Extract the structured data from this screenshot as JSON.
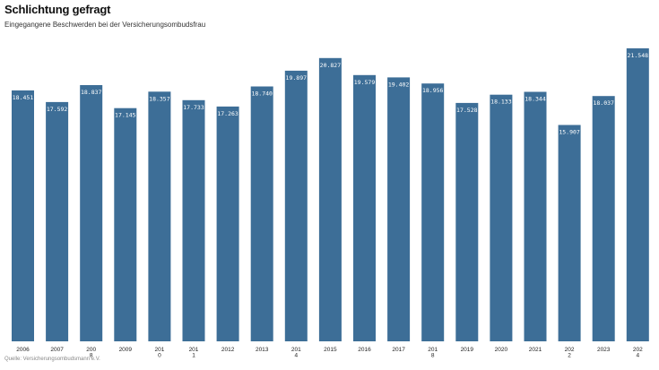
{
  "chart_data": {
    "type": "bar",
    "title": "Schlichtung gefragt",
    "subtitle": "Eingegangene Beschwerden bei der Versicherungsombudsfrau",
    "source": "Quelle: Versicherungsombudsmann e.V.",
    "xlabel": "",
    "ylabel": "",
    "ylim": [
      0,
      22000
    ],
    "grid": false,
    "bar_color": "#3d6e97",
    "label_color": "#ffffff",
    "categories": [
      "2006",
      "2007",
      "2008",
      "2009",
      "2010",
      "2011",
      "2012",
      "2013",
      "2014",
      "2015",
      "2016",
      "2017",
      "2018",
      "2019",
      "2020",
      "2021",
      "2022",
      "2023",
      "2024"
    ],
    "tick_labels": [
      [
        "2006"
      ],
      [
        "2007"
      ],
      [
        "200",
        "8"
      ],
      [
        "2009"
      ],
      [
        "201",
        "0"
      ],
      [
        "201",
        "1"
      ],
      [
        "2012"
      ],
      [
        "2013"
      ],
      [
        "201",
        "4"
      ],
      [
        "2015"
      ],
      [
        "2016"
      ],
      [
        "2017"
      ],
      [
        "201",
        "8"
      ],
      [
        "2019"
      ],
      [
        "2020"
      ],
      [
        "2021"
      ],
      [
        "202",
        "2"
      ],
      [
        "2023"
      ],
      [
        "202",
        "4"
      ]
    ],
    "values": [
      18451,
      17592,
      18837,
      17145,
      18357,
      17733,
      17263,
      18740,
      19897,
      20827,
      19579,
      19402,
      18956,
      17528,
      18133,
      18344,
      15907,
      18037,
      21548
    ],
    "value_labels": [
      "18.451",
      "17.592",
      "18.837",
      "17.145",
      "18.357",
      "17.733",
      "17.263",
      "18.740",
      "19.897",
      "20.827",
      "19.579",
      "19.402",
      "18.956",
      "17.528",
      "18.133",
      "18.344",
      "15.907",
      "18.037",
      "21.548"
    ]
  }
}
